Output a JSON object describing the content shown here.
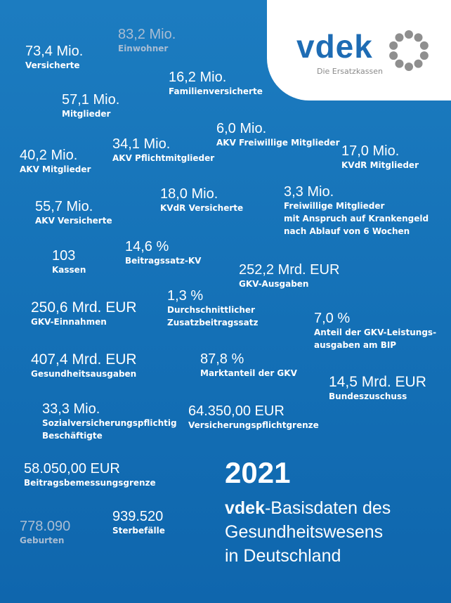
{
  "logo": {
    "word": "vdek",
    "tagline": "Die Ersatzkassen",
    "ring_color": "#8f8f8f",
    "word_color": "#1e6cb4"
  },
  "stats": {
    "einwohner": {
      "value": "83,2 Mio.",
      "label": "Einwohner"
    },
    "versicherte": {
      "value": "73,4 Mio.",
      "label": "Versicherte"
    },
    "familienversicherte": {
      "value": "16,2 Mio.",
      "label": "Familienversicherte"
    },
    "mitglieder": {
      "value": "57,1 Mio.",
      "label": "Mitglieder"
    },
    "akv_freiwillige": {
      "value": "6,0 Mio.",
      "label": "AKV Freiwillige Mitglieder"
    },
    "akv_pflicht": {
      "value": "34,1 Mio.",
      "label": "AKV Pflichtmitglieder"
    },
    "akv_mitglieder": {
      "value": "40,2 Mio.",
      "label": "AKV Mitglieder"
    },
    "kvdr_mitglieder": {
      "value": "17,0 Mio.",
      "label": "KVdR Mitglieder"
    },
    "kvdr_versicherte": {
      "value": "18,0 Mio.",
      "label": "KVdR Versicherte"
    },
    "freiwillige_krankengeld": {
      "value": "3,3 Mio.",
      "label_lines": [
        "Freiwillige Mitglieder",
        "mit Anspruch auf Krankengeld",
        "nach Ablauf von 6 Wochen"
      ]
    },
    "akv_versicherte": {
      "value": "55,7 Mio.",
      "label": "AKV Versicherte"
    },
    "kassen": {
      "value": "103",
      "label": "Kassen"
    },
    "beitragssatz": {
      "value": "14,6 %",
      "label": "Beitragssatz-KV"
    },
    "gkv_ausgaben": {
      "value": "252,2 Mrd. EUR",
      "label": "GKV-Ausgaben"
    },
    "gkv_einnahmen": {
      "value": "250,6 Mrd. EUR",
      "label": "GKV-Einnahmen"
    },
    "zusatzbeitrag": {
      "value": "1,3 %",
      "label_lines": [
        "Durchschnittlicher",
        "Zusatzbeitragssatz"
      ]
    },
    "bip_anteil": {
      "value": "7,0 %",
      "label_lines": [
        "Anteil der GKV-Leistungs-",
        "ausgaben am BIP"
      ]
    },
    "gesundheitsausgaben": {
      "value": "407,4 Mrd. EUR",
      "label": "Gesundheitsausgaben"
    },
    "marktanteil": {
      "value": "87,8 %",
      "label": "Marktanteil der GKV"
    },
    "bundeszuschuss": {
      "value": "14,5 Mrd. EUR",
      "label": "Bundeszuschuss"
    },
    "beschaeftigte": {
      "value": "33,3 Mio.",
      "label_lines": [
        "Sozialversicherungspflichtig",
        "Beschäftigte"
      ]
    },
    "versicherungspflichtgrenze": {
      "value": "64.350,00 EUR",
      "label": "Versicherungspflichtgrenze"
    },
    "beitragsbemessungsgrenze": {
      "value": "58.050,00 EUR",
      "label": "Beitragsbemessungsgrenze"
    },
    "sterbefaelle": {
      "value": "939.520",
      "label": "Sterbefälle"
    },
    "geburten": {
      "value": "778.090",
      "label": "Geburten"
    }
  },
  "footer": {
    "year": "2021",
    "brand": "vdek",
    "title_rest": "-Basisdaten des",
    "title_line2": "Gesundheitswesens",
    "title_line3": "in Deutschland"
  }
}
